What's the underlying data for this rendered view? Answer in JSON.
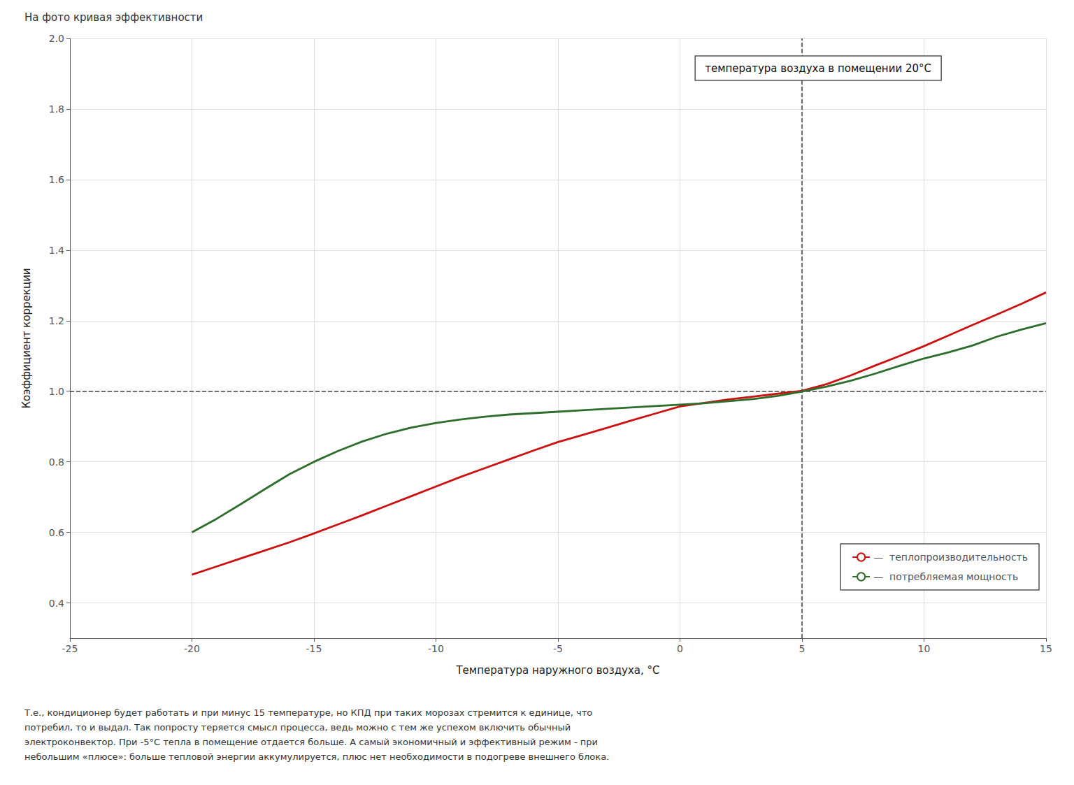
{
  "chart_data": {
    "type": "line",
    "title": "На фото кривая эффективности",
    "caption": "Т.е., кондиционер будет работать и при минус 15 температуре, но КПД при таких морозах стремится к единице, что\nпотребил, то и выдал. Так попросту теряется смысл процесса, ведь можно с тем же успехом включить обычный\nэлектроконвектор. При -5°С тепла в помещение отдается больше. А самый экономичный и эффективный режим - при\nнебольшим «плюсе»: больше тепловой энергии аккумулируется, плюс нет необходимости в подогреве внешнего блока.",
    "annotations": [
      "температура воздуха в помещении 20°С"
    ],
    "xlabel": "Температура наружного воздуха, °С",
    "ylabel": "Коэффициент коррекции",
    "xlim": [
      -25,
      15
    ],
    "ylim": [
      0.3,
      2.0
    ],
    "xticks": [
      -25,
      -20,
      -15,
      -10,
      -5,
      0,
      5,
      10,
      15
    ],
    "yticks": [
      0.4,
      0.6,
      0.8,
      {
        "value": 1.0,
        "label": "1.0"
      },
      1.2,
      1.4,
      1.6,
      1.8,
      {
        "value": 2.0,
        "label": "2.0"
      }
    ],
    "grid": true,
    "legend": "lower right",
    "hline": 1.0,
    "vline": 5,
    "x": [
      -20,
      -19,
      -18,
      -17,
      -16,
      -15,
      -14,
      -13,
      -12,
      -11,
      -10,
      -9,
      -8,
      -7,
      -6,
      -5,
      -4,
      -3,
      -2,
      -1,
      0,
      1,
      2,
      3,
      4,
      5,
      6,
      7,
      8,
      9,
      10,
      11,
      12,
      13,
      14,
      15
    ],
    "series": [
      {
        "name": "—  теплопроизводительность",
        "color": "#cc1111",
        "values": [
          0.48,
          0.503,
          0.526,
          0.549,
          0.572,
          0.597,
          0.623,
          0.649,
          0.676,
          0.703,
          0.73,
          0.757,
          0.782,
          0.807,
          0.832,
          0.856,
          0.876,
          0.896,
          0.917,
          0.937,
          0.957,
          0.967,
          0.977,
          0.985,
          0.993,
          1.001,
          1.02,
          1.045,
          1.073,
          1.1,
          1.128,
          1.158,
          1.188,
          1.218,
          1.248,
          1.28
        ]
      },
      {
        "name": "—  потребляемая мощность",
        "color": "#2d6e2d",
        "values": [
          0.6,
          0.638,
          0.68,
          0.723,
          0.765,
          0.8,
          0.831,
          0.858,
          0.88,
          0.897,
          0.91,
          0.92,
          0.928,
          0.934,
          0.938,
          0.942,
          0.946,
          0.95,
          0.954,
          0.958,
          0.962,
          0.966,
          0.972,
          0.978,
          0.987,
          0.999,
          1.013,
          1.03,
          1.05,
          1.072,
          1.093,
          1.11,
          1.13,
          1.155,
          1.175,
          1.193
        ]
      }
    ]
  }
}
